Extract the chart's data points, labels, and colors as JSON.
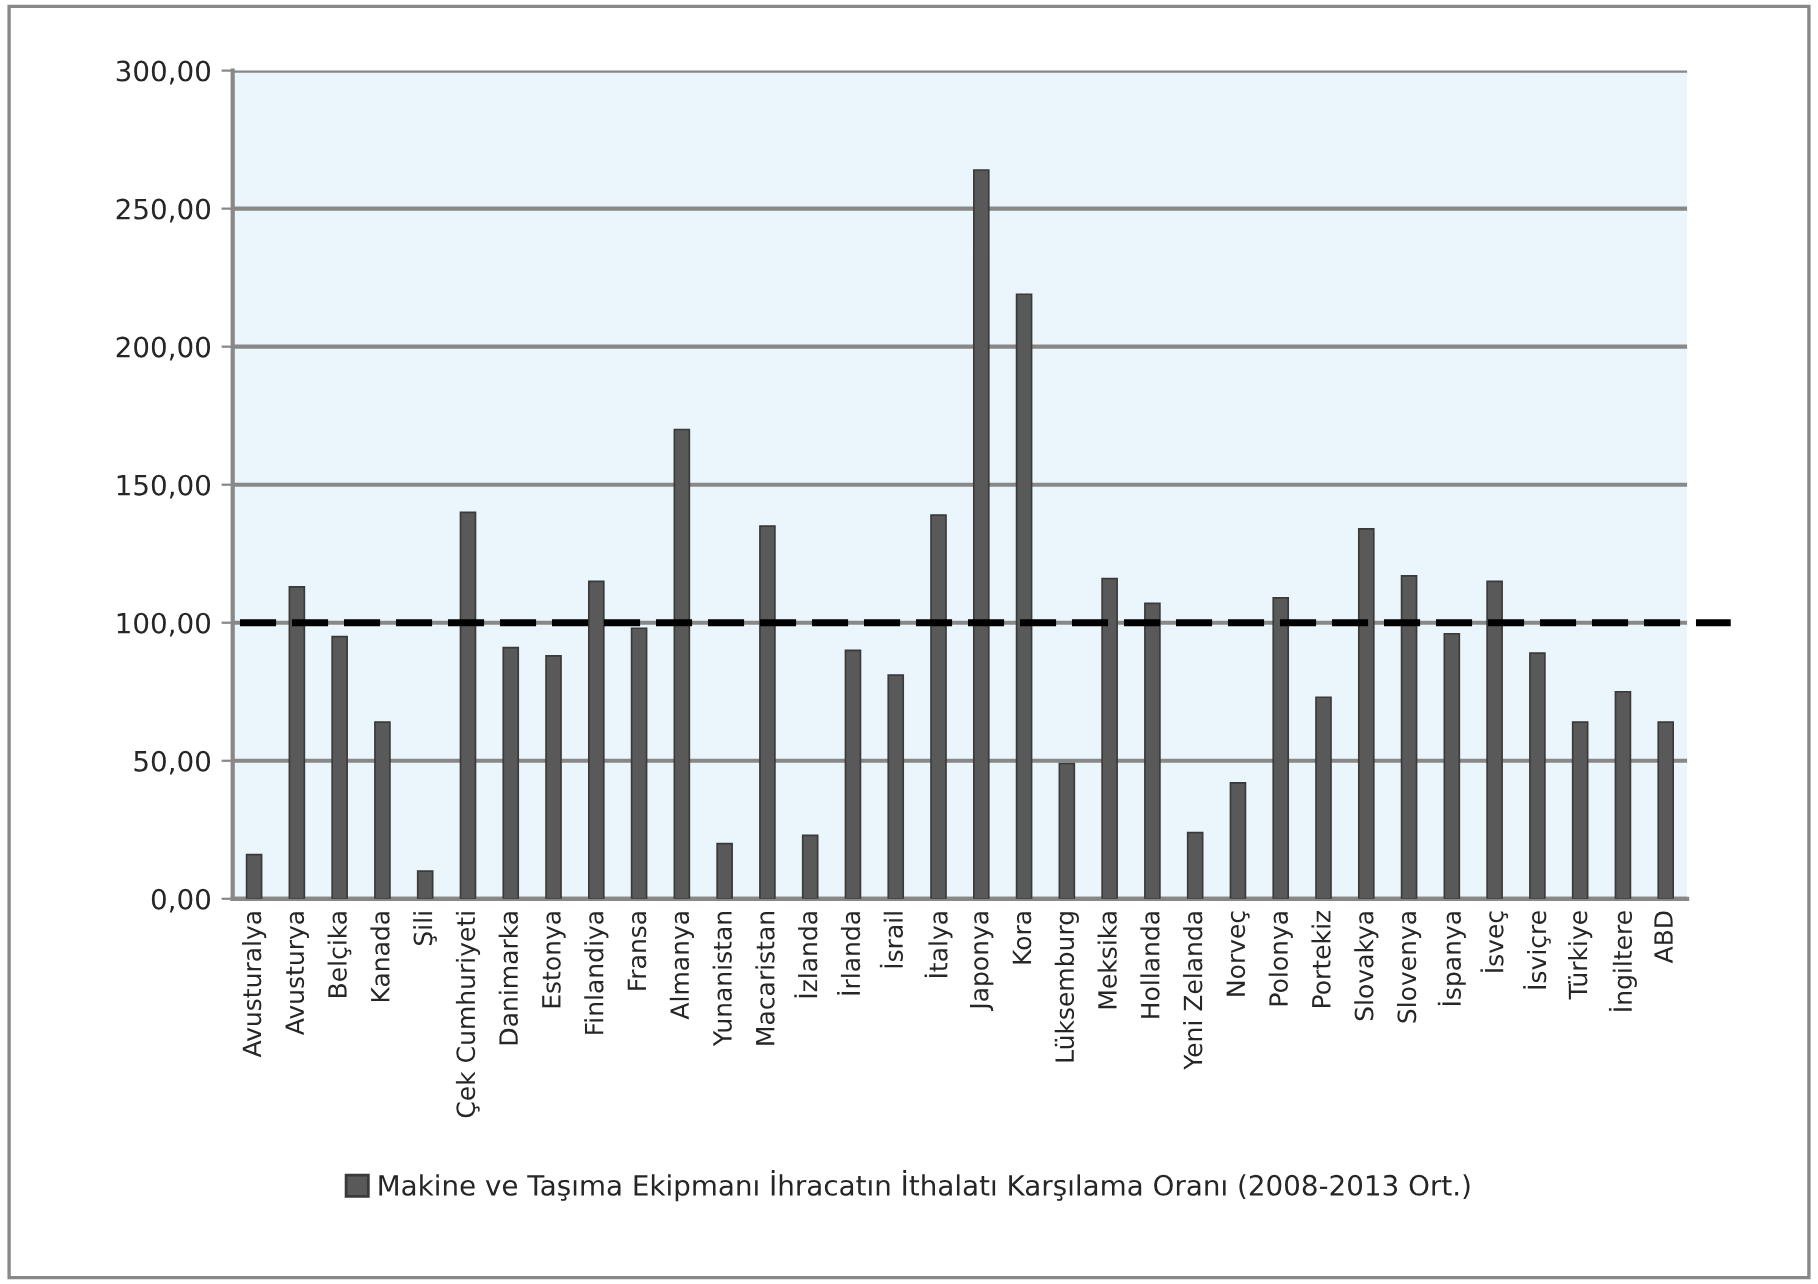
{
  "chart_data": {
    "type": "bar",
    "categories": [
      "Avusturalya",
      "Avusturya",
      "Belçika",
      "Kanada",
      "Şili",
      "Çek Cumhuriyeti",
      "Danimarka",
      "Estonya",
      "Finlandiya",
      "Fransa",
      "Almanya",
      "Yunanistan",
      "Macaristan",
      "İzlanda",
      "İrlanda",
      "İsrail",
      "İtalya",
      "Japonya",
      "Kora",
      "Lüksemburg",
      "Meksika",
      "Hollanda",
      "Yeni Zelanda",
      "Norveç",
      "Polonya",
      "Portekiz",
      "Slovakya",
      "Slovenya",
      "İspanya",
      "İsveç",
      "İsviçre",
      "Türkiye",
      "İngiltere",
      "ABD"
    ],
    "series": [
      {
        "name": "Makine ve Taşıma Ekipmanı İhracatın İthalatı Karşılama Oranı (2008-2013 Ort.)",
        "color": "#595959",
        "values": [
          16,
          113,
          95,
          64,
          10,
          140,
          91,
          88,
          115,
          98,
          170,
          20,
          135,
          23,
          90,
          81,
          139,
          264,
          219,
          49,
          116,
          107,
          24,
          42,
          109,
          73,
          134,
          117,
          96,
          115,
          89,
          64,
          75,
          64
        ]
      }
    ],
    "ylim": [
      0,
      300
    ],
    "yticks": [
      {
        "value": 0,
        "label": "0,00"
      },
      {
        "value": 50,
        "label": "50,00"
      },
      {
        "value": 100,
        "label": "100,00"
      },
      {
        "value": 150,
        "label": "150,00"
      },
      {
        "value": 200,
        "label": "200,00"
      },
      {
        "value": 250,
        "label": "250,00"
      },
      {
        "value": 300,
        "label": "300,00"
      }
    ],
    "ref_lines": [
      {
        "axis": "y",
        "value": 100,
        "color": "#000000",
        "line_style": "dashed"
      }
    ],
    "grid": "y",
    "legend": "bottom"
  }
}
